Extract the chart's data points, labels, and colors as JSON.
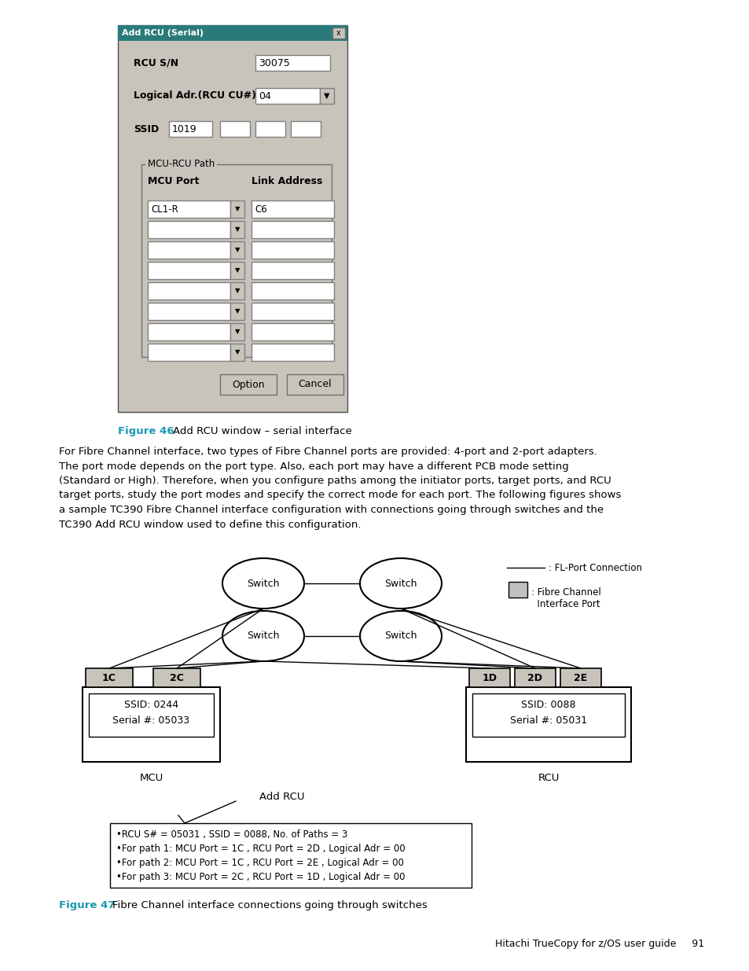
{
  "page_bg": "#ffffff",
  "fig_width": 9.54,
  "fig_height": 12.35,
  "dialog_title": "Add RCU (Serial)",
  "dialog_title_bg": "#2b7a7a",
  "dialog_bg": "#c8c4bc",
  "rcu_sn_label": "RCU S/N",
  "rcu_sn_value": "30075",
  "logical_adr_label": "Logical Adr.(RCU CU#)",
  "logical_adr_value": "04",
  "ssid_label": "SSID",
  "ssid_value": "1019",
  "group_label": "MCU-RCU Path",
  "col1_label": "MCU Port",
  "col2_label": "Link Address",
  "first_row_mcu": "CL1-R",
  "first_row_link": "C6",
  "num_empty_rows": 7,
  "btn1": "Option",
  "btn2": "Cancel",
  "figure46_label": "Figure 46",
  "figure46_text": "Add RCU window – serial interface",
  "body_text_lines": [
    "For Fibre Channel interface, two types of Fibre Channel ports are provided: 4-port and 2-port adapters.",
    "The port mode depends on the port type. Also, each port may have a different PCB mode setting",
    "(Standard or High). Therefore, when you configure paths among the initiator ports, target ports, and RCU",
    "target ports, study the port modes and specify the correct mode for each port. The following figures shows",
    "a sample TC390 Fibre Channel interface configuration with connections going through switches and the",
    "TC390 Add RCU window used to define this configuration."
  ],
  "legend_line_text": ": FL-Port Connection",
  "legend_rect_text": ": Fibre Channel\n  Interface Port",
  "switch_label": "Switch",
  "mcu_ssid": "SSID: 0244",
  "mcu_serial": "Serial #: 05033",
  "mcu_label": "MCU",
  "rcu_ssid": "SSID: 0088",
  "rcu_serial": "Serial #: 05031",
  "rcu_label": "RCU",
  "mcu_ports": [
    "1C",
    "2C"
  ],
  "rcu_ports": [
    "1D",
    "2D",
    "2E"
  ],
  "add_rcu_label": "Add RCU",
  "note_lines": [
    "•RCU S# = 05031 , SSID = 0088, No. of Paths = 3",
    "•For path 1: MCU Port = 1C , RCU Port = 2D , Logical Adr = 00",
    "•For path 2: MCU Port = 1C , RCU Port = 2E , Logical Adr = 00",
    "•For path 3: MCU Port = 2C , RCU Port = 1D , Logical Adr = 00"
  ],
  "figure47_label": "Figure 47",
  "figure47_text": "Fibre Channel interface connections going through switches",
  "footer_text": "Hitachi TrueCopy for z/OS user guide     91",
  "label_color": "#1a9ab0",
  "text_color": "#000000",
  "gray_color": "#c0c0c0"
}
